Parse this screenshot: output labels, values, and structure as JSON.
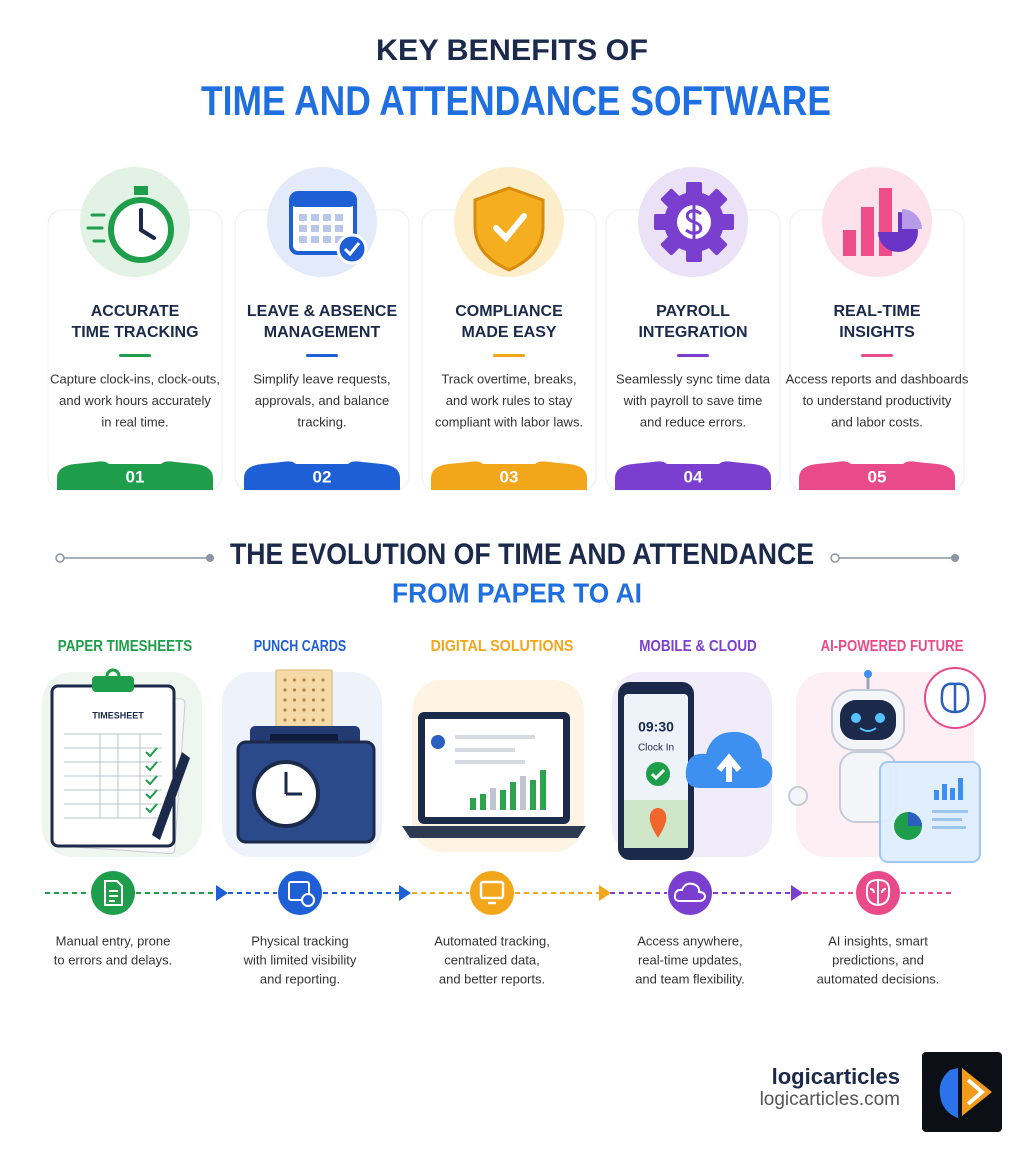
{
  "header": {
    "title_line1": "KEY BENEFITS OF",
    "title_line2": "TIME AND ATTENDANCE SOFTWARE"
  },
  "benefits": [
    {
      "title": [
        "ACCURATE",
        "TIME TRACKING"
      ],
      "description": [
        "Capture clock-ins, clock-outs,",
        "and work hours accurately",
        "in real time."
      ],
      "number": "01"
    },
    {
      "title": [
        "LEAVE & ABSENCE",
        "MANAGEMENT"
      ],
      "description": [
        "Simplify leave requests,",
        "approvals, and balance",
        "tracking."
      ],
      "number": "02"
    },
    {
      "title": [
        "COMPLIANCE",
        "MADE EASY"
      ],
      "description": [
        "Track overtime, breaks,",
        "and work rules to stay",
        "compliant with labor laws."
      ],
      "number": "03"
    },
    {
      "title": [
        "PAYROLL",
        "INTEGRATION"
      ],
      "description": [
        "Seamlessly sync time data",
        "with payroll to save time",
        "and reduce errors."
      ],
      "number": "04"
    },
    {
      "title": [
        "REAL-TIME",
        "INSIGHTS"
      ],
      "description": [
        "Access reports and dashboards",
        "to understand productivity",
        "and labor costs."
      ],
      "number": "05"
    }
  ],
  "evolution": {
    "title": "THE EVOLUTION OF TIME AND ATTENDANCE",
    "subtitle": "FROM PAPER TO AI",
    "stages": [
      {
        "label": "PAPER TIMESHEETS",
        "illustration_text": [
          "TIMESHEET"
        ],
        "description": [
          "Manual entry, prone",
          "to errors and delays."
        ]
      },
      {
        "label": "PUNCH CARDS",
        "illustration_text": [],
        "description": [
          "Physical tracking",
          "with limited visibility",
          "and reporting."
        ]
      },
      {
        "label": "DIGITAL SOLUTIONS",
        "illustration_text": [],
        "description": [
          "Automated tracking,",
          "centralized data,",
          "and better reports."
        ]
      },
      {
        "label": "MOBILE & CLOUD",
        "illustration_text": [
          "09:30",
          "Clock In"
        ],
        "description": [
          "Access anywhere,",
          "real-time updates,",
          "and team flexibility."
        ]
      },
      {
        "label": "AI-POWERED FUTURE",
        "illustration_text": [],
        "description": [
          "AI insights, smart",
          "predictions, and",
          "automated decisions."
        ]
      }
    ]
  },
  "footer": {
    "brand": "logicarticles",
    "url": "logicarticles.com"
  }
}
